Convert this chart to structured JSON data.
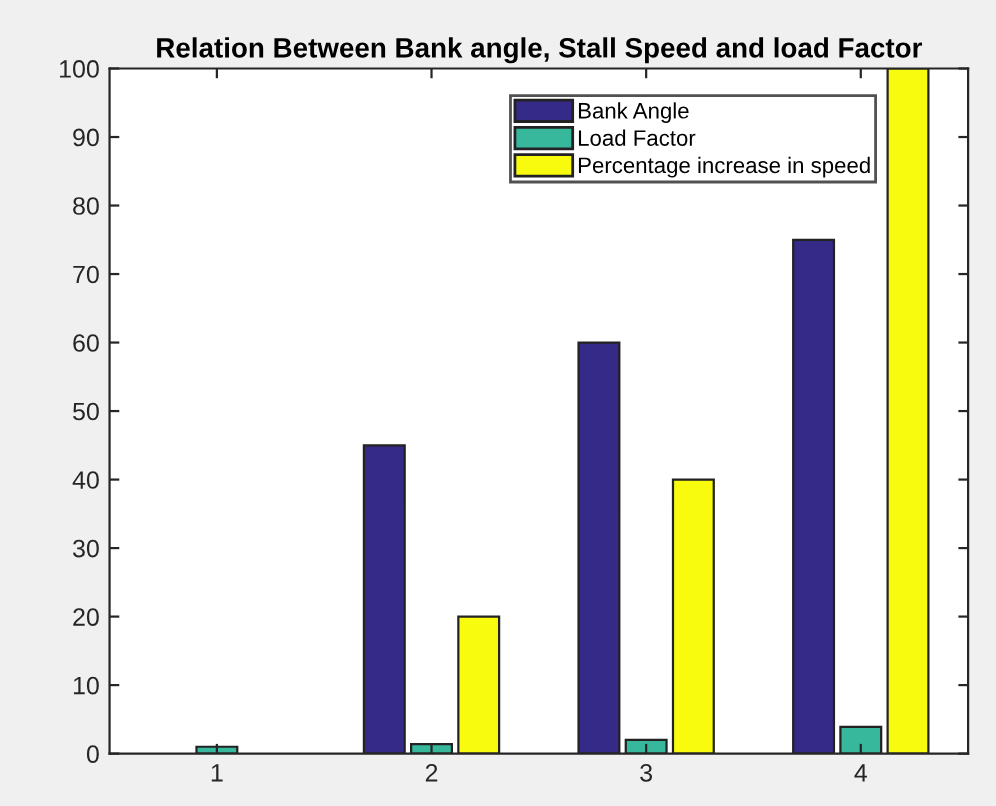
{
  "chart_data": {
    "type": "bar",
    "title": "Relation Between Bank angle, Stall Speed and load Factor",
    "categories": [
      "1",
      "2",
      "3",
      "4"
    ],
    "series": [
      {
        "name": "Bank Angle",
        "color": "#352a87",
        "values": [
          null,
          45,
          60,
          75
        ]
      },
      {
        "name": "Load Factor",
        "color": "#37b89d",
        "values": [
          1,
          1.4,
          2,
          3.9
        ]
      },
      {
        "name": "Percentage increase in speed",
        "color": "#f9fb0e",
        "values": [
          null,
          20,
          40,
          100
        ]
      }
    ],
    "ylim": [
      0,
      100
    ],
    "yticks": [
      0,
      10,
      20,
      30,
      40,
      50,
      60,
      70,
      80,
      90,
      100
    ],
    "grid": false,
    "legend": "top right"
  }
}
